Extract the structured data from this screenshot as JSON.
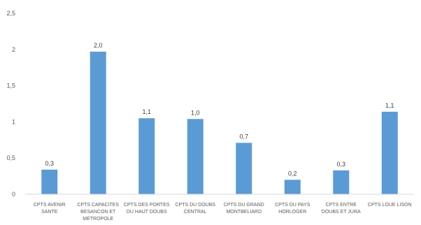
{
  "chart_data": {
    "type": "bar",
    "title": "",
    "xlabel": "",
    "ylabel": "",
    "ylim": [
      0,
      2.5
    ],
    "yticks": [
      "0",
      "0,5",
      "1",
      "1,5",
      "2",
      "2,5"
    ],
    "grid": false,
    "legend": "none",
    "bar_color": "#5b9bd5",
    "categories": [
      [
        "CPTS AVENIR",
        "SANTE"
      ],
      [
        "CPTS CAPACITES",
        "BESANCON ET",
        "METROPOLE"
      ],
      [
        "CPTS DES PORTES",
        "DU HAUT DOUBS"
      ],
      [
        "CPTS DU DOUBS",
        "CENTRAL"
      ],
      [
        "CPTS DU GRAND",
        "MONTBELIARD"
      ],
      [
        "CPTS DU PAYS",
        "HORLOGER"
      ],
      [
        "CPTS ENTRE",
        "DOUBS ET JURA"
      ],
      [
        "CPTS LOUE LISON"
      ]
    ],
    "values": [
      0.34,
      1.97,
      1.05,
      1.04,
      0.71,
      0.2,
      0.33,
      1.14
    ],
    "data_labels": [
      "0,3",
      "2,0",
      "1,1",
      "1,0",
      "0,7",
      "0,2",
      "0,3",
      "1,1"
    ]
  }
}
